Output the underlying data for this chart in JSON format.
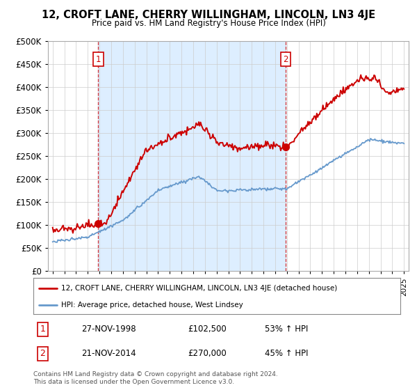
{
  "title": "12, CROFT LANE, CHERRY WILLINGHAM, LINCOLN, LN3 4JE",
  "subtitle": "Price paid vs. HM Land Registry's House Price Index (HPI)",
  "legend_line1": "12, CROFT LANE, CHERRY WILLINGHAM, LINCOLN, LN3 4JE (detached house)",
  "legend_line2": "HPI: Average price, detached house, West Lindsey",
  "annotation1_date": "27-NOV-1998",
  "annotation1_price": "£102,500",
  "annotation1_hpi": "53% ↑ HPI",
  "annotation2_date": "21-NOV-2014",
  "annotation2_price": "£270,000",
  "annotation2_hpi": "45% ↑ HPI",
  "footer": "Contains HM Land Registry data © Crown copyright and database right 2024.\nThis data is licensed under the Open Government Licence v3.0.",
  "hpi_color": "#6699cc",
  "price_color": "#cc0000",
  "annotation_color": "#cc0000",
  "shade_color": "#ddeeff",
  "ylim": [
    0,
    500000
  ],
  "yticks": [
    0,
    50000,
    100000,
    150000,
    200000,
    250000,
    300000,
    350000,
    400000,
    450000,
    500000
  ],
  "sale1_year": 1998.9,
  "sale1_price": 102500,
  "sale2_year": 2014.9,
  "sale2_price": 270000,
  "xlim_start": 1994.6,
  "xlim_end": 2025.4
}
